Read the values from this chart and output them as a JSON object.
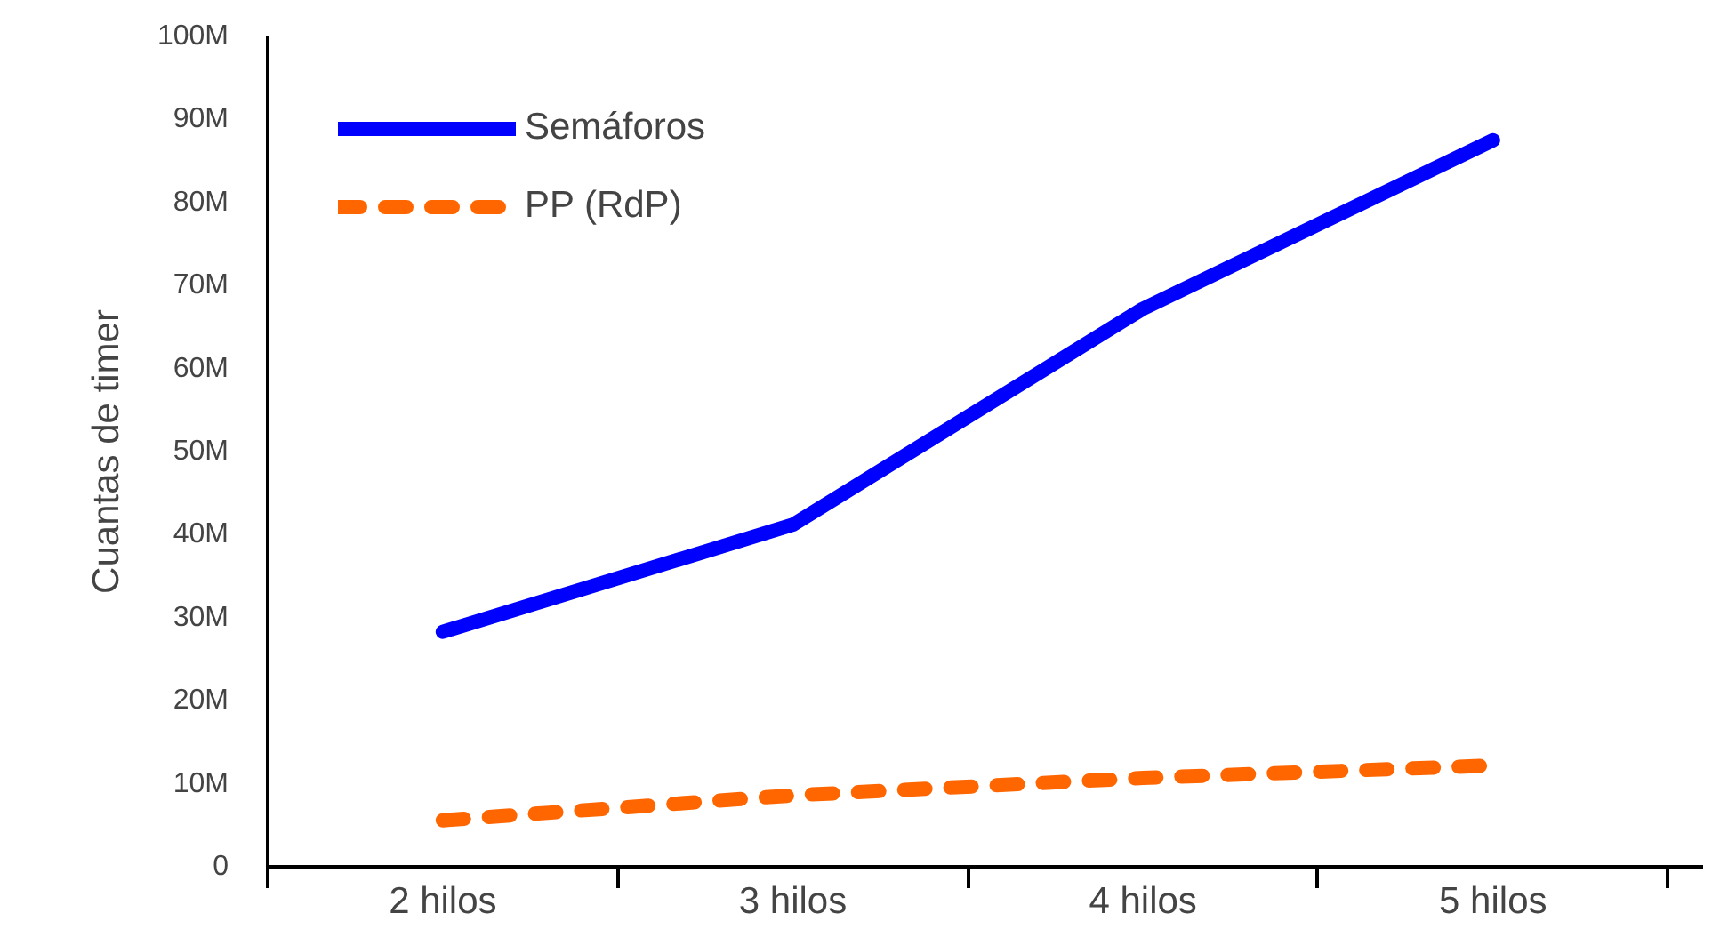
{
  "chart_data": {
    "type": "line",
    "ylabel": "Cuantas de timer",
    "categories": [
      "2 hilos",
      "3 hilos",
      "4 hilos",
      "5 hilos"
    ],
    "series": [
      {
        "name": "Semáforos",
        "color": "#0000ff",
        "values": [
          28.3,
          41.2,
          67.2,
          87.5
        ],
        "line_style": "solid"
      },
      {
        "name": "PP (RdP)",
        "color": "#ff6600",
        "values": [
          5.6,
          8.6,
          10.7,
          12.2
        ],
        "line_style": "dashed"
      }
    ],
    "ylim": [
      0,
      100
    ],
    "yticks": [
      {
        "value": 0,
        "label": "0"
      },
      {
        "value": 10,
        "label": "10M"
      },
      {
        "value": 20,
        "label": "20M"
      },
      {
        "value": 30,
        "label": "30M"
      },
      {
        "value": 40,
        "label": "40M"
      },
      {
        "value": 50,
        "label": "50M"
      },
      {
        "value": 60,
        "label": "60M"
      },
      {
        "value": 70,
        "label": "70M"
      },
      {
        "value": 80,
        "label": "80M"
      },
      {
        "value": 90,
        "label": "90M"
      },
      {
        "value": 100,
        "label": "100M"
      }
    ],
    "grid": false,
    "legend": "top left"
  }
}
